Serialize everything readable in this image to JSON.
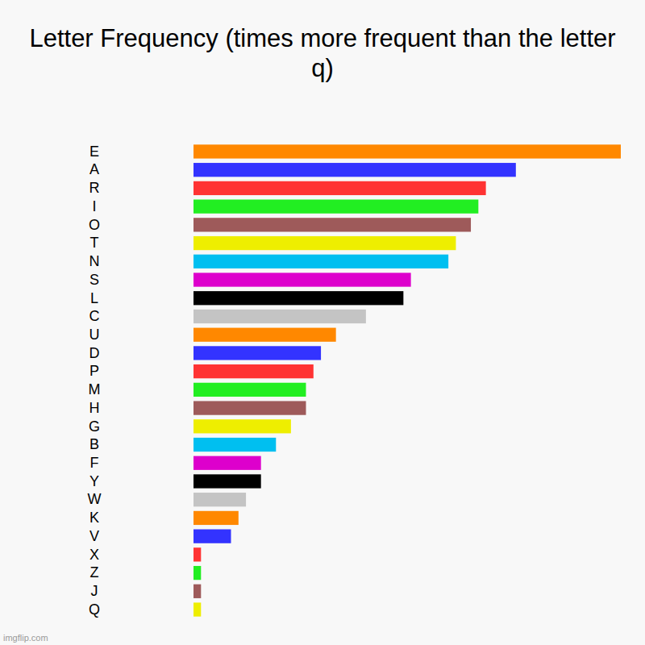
{
  "chart_data": {
    "type": "bar",
    "orientation": "horizontal",
    "title": "Letter Frequency (times more frequent than the letter q)",
    "categories": [
      "E",
      "A",
      "R",
      "I",
      "O",
      "T",
      "N",
      "S",
      "L",
      "C",
      "U",
      "D",
      "P",
      "M",
      "H",
      "G",
      "B",
      "F",
      "Y",
      "W",
      "K",
      "V",
      "X",
      "Z",
      "J",
      "Q"
    ],
    "values": [
      57,
      43,
      39,
      38,
      37,
      35,
      34,
      29,
      28,
      23,
      19,
      17,
      16,
      15,
      15,
      13,
      11,
      9,
      9,
      7,
      6,
      5,
      1,
      1,
      1,
      1
    ],
    "colors": [
      "#ff8800",
      "#3333ff",
      "#ff3333",
      "#22ee22",
      "#9e5a5a",
      "#eeee00",
      "#00bff0",
      "#dd00cc",
      "#000000",
      "#c4c4c4",
      "#ff8800",
      "#3333ff",
      "#ff3333",
      "#22ee22",
      "#9e5a5a",
      "#eeee00",
      "#00bff0",
      "#dd00cc",
      "#000000",
      "#c4c4c4",
      "#ff8800",
      "#3333ff",
      "#ff3333",
      "#22ee22",
      "#9e5a5a",
      "#eeee00"
    ],
    "xlim": [
      0,
      57
    ],
    "grid": false,
    "tick_labels": "y",
    "annotations": [
      "imgflip.com"
    ]
  }
}
